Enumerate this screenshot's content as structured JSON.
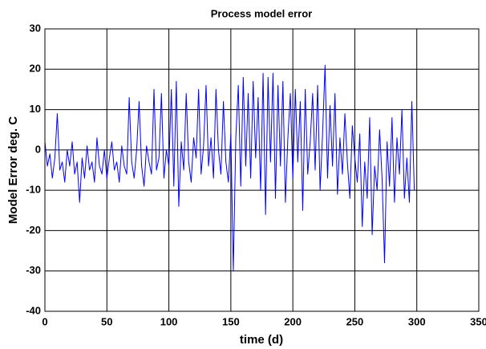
{
  "chart_data": {
    "type": "line",
    "title": "Process model error",
    "x_label": "time (d)",
    "y_label": "Model Error deg. C",
    "color": "#0000ff",
    "grid": true,
    "xlim": [
      0,
      350
    ],
    "xticks": [
      0,
      50,
      100,
      150,
      200,
      250,
      300,
      350
    ],
    "ylim": [
      -40,
      30
    ],
    "yticks": [
      -40,
      -30,
      -20,
      -10,
      0,
      10,
      20,
      30
    ],
    "x": [
      0,
      2,
      4,
      6,
      8,
      10,
      12,
      14,
      16,
      18,
      20,
      22,
      24,
      26,
      28,
      30,
      32,
      34,
      36,
      38,
      40,
      42,
      44,
      46,
      48,
      50,
      52,
      54,
      56,
      58,
      60,
      62,
      64,
      66,
      68,
      70,
      72,
      74,
      76,
      78,
      80,
      82,
      84,
      86,
      88,
      90,
      92,
      94,
      96,
      98,
      100,
      102,
      104,
      106,
      108,
      110,
      112,
      114,
      116,
      118,
      120,
      122,
      124,
      126,
      128,
      130,
      132,
      134,
      136,
      138,
      140,
      142,
      144,
      146,
      148,
      150,
      152,
      154,
      156,
      158,
      160,
      162,
      164,
      166,
      168,
      170,
      172,
      174,
      176,
      178,
      180,
      182,
      184,
      186,
      188,
      190,
      192,
      194,
      196,
      198,
      200,
      202,
      204,
      206,
      208,
      210,
      212,
      214,
      216,
      218,
      220,
      222,
      224,
      226,
      228,
      230,
      232,
      234,
      236,
      238,
      240,
      242,
      244,
      246,
      248,
      250,
      252,
      254,
      256,
      258,
      260,
      262,
      264,
      266,
      268,
      270,
      272,
      274,
      276,
      278,
      280,
      282,
      284,
      286,
      288,
      290,
      292,
      294,
      296,
      298
    ],
    "values": [
      2,
      -4,
      -1,
      -7,
      -2,
      9,
      -5,
      -3,
      -8,
      0,
      -4,
      2,
      -6,
      -3,
      -13,
      -2,
      -7,
      1,
      -5,
      -3,
      -8,
      3,
      -4,
      -6,
      0,
      -7,
      -2,
      2,
      -5,
      -3,
      -8,
      1,
      -4,
      -6,
      13,
      -3,
      -7,
      0,
      12,
      -4,
      -9,
      1,
      -3,
      -6,
      15,
      -5,
      -2,
      14,
      -7,
      0,
      -4,
      15,
      -9,
      17,
      -14,
      2,
      -5,
      14,
      -3,
      -8,
      3,
      -2,
      15,
      -6,
      1,
      16,
      -4,
      3,
      -7,
      15,
      0,
      -6,
      12,
      -3,
      -8,
      4,
      -30,
      3,
      16,
      -9,
      18,
      -4,
      14,
      -7,
      17,
      -2,
      13,
      -10,
      19,
      -16,
      18,
      -3,
      19,
      -12,
      16,
      -4,
      17,
      -13,
      3,
      14,
      -7,
      15,
      -3,
      12,
      -15,
      15,
      -6,
      2,
      14,
      -5,
      16,
      -10,
      4,
      21,
      -7,
      11,
      -4,
      14,
      -11,
      3,
      -6,
      9,
      -3,
      -12,
      6,
      -2,
      -8,
      4,
      -19,
      -3,
      -12,
      8,
      -21,
      -4,
      -10,
      5,
      -7,
      -28,
      2,
      -9,
      8,
      -13,
      3,
      -6,
      10,
      -12,
      -2,
      -13,
      12,
      -10
    ]
  }
}
